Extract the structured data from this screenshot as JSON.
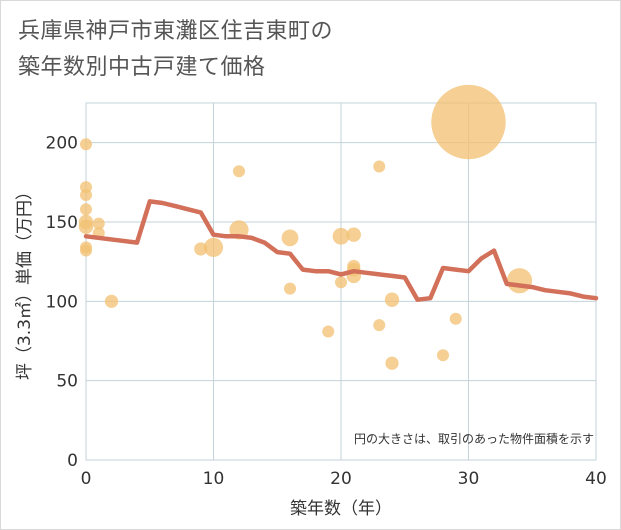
{
  "header": {
    "title_line1": "兵庫県神戸市東灘区住吉東町の",
    "title_line2": "築年数別中古戸建て価格"
  },
  "colors": {
    "grid": "#c5d3db",
    "bubble": "#f2c275",
    "line": "#d2705a",
    "text": "#333333"
  },
  "chart_data": {
    "type": "scatter",
    "xlabel": "築年数（年）",
    "ylabel": "坪（3.3㎡）単価（万円）",
    "note": "円の大きさは、取引のあった物件面積を示す",
    "xlim": [
      0,
      40
    ],
    "ylim": [
      0,
      225
    ],
    "xticks": [
      0,
      10,
      20,
      30,
      40
    ],
    "yticks": [
      0,
      50,
      100,
      150,
      200
    ],
    "xtick_labels": [
      "0",
      "10",
      "20",
      "30",
      "40"
    ],
    "ytick_labels": [
      "0",
      "50",
      "100",
      "150",
      "200"
    ],
    "bubbles": [
      {
        "x": 0,
        "y": 199,
        "size": 1
      },
      {
        "x": 0,
        "y": 172,
        "size": 1
      },
      {
        "x": 0,
        "y": 167,
        "size": 1
      },
      {
        "x": 0,
        "y": 158,
        "size": 1
      },
      {
        "x": 0,
        "y": 150,
        "size": 1.2
      },
      {
        "x": 0,
        "y": 147,
        "size": 1.2
      },
      {
        "x": 0,
        "y": 134,
        "size": 1
      },
      {
        "x": 0,
        "y": 132,
        "size": 1
      },
      {
        "x": 1,
        "y": 149,
        "size": 1
      },
      {
        "x": 1,
        "y": 143,
        "size": 1
      },
      {
        "x": 2,
        "y": 100,
        "size": 1.1
      },
      {
        "x": 9,
        "y": 133,
        "size": 1.1
      },
      {
        "x": 10,
        "y": 134,
        "size": 1.6
      },
      {
        "x": 12,
        "y": 182,
        "size": 1
      },
      {
        "x": 12,
        "y": 145,
        "size": 1.6
      },
      {
        "x": 16,
        "y": 140,
        "size": 1.4
      },
      {
        "x": 16,
        "y": 108,
        "size": 1
      },
      {
        "x": 19,
        "y": 81,
        "size": 1
      },
      {
        "x": 20,
        "y": 141,
        "size": 1.4
      },
      {
        "x": 20,
        "y": 112,
        "size": 1
      },
      {
        "x": 21,
        "y": 142,
        "size": 1.2
      },
      {
        "x": 21,
        "y": 122,
        "size": 1.1
      },
      {
        "x": 21,
        "y": 120,
        "size": 1.1
      },
      {
        "x": 21,
        "y": 116,
        "size": 1.2
      },
      {
        "x": 23,
        "y": 185,
        "size": 1
      },
      {
        "x": 23,
        "y": 85,
        "size": 1
      },
      {
        "x": 24,
        "y": 101,
        "size": 1.2
      },
      {
        "x": 24,
        "y": 61,
        "size": 1.1
      },
      {
        "x": 28,
        "y": 66,
        "size": 1
      },
      {
        "x": 29,
        "y": 89,
        "size": 1
      },
      {
        "x": 30,
        "y": 213,
        "size": 6.2
      },
      {
        "x": 34,
        "y": 113,
        "size": 2.1
      }
    ],
    "trend": {
      "x": [
        0,
        4,
        5,
        6,
        7,
        8,
        9,
        10,
        11,
        12,
        13,
        14,
        15,
        16,
        17,
        18,
        19,
        20,
        21,
        22,
        23,
        24,
        25,
        26,
        27,
        28,
        29,
        30,
        31,
        32,
        33,
        34,
        35,
        36,
        37,
        38,
        39,
        40
      ],
      "y": [
        141,
        137,
        163,
        162,
        160,
        158,
        156,
        142,
        141,
        141,
        140,
        137,
        131,
        130,
        120,
        119,
        119,
        117,
        119,
        118,
        117,
        116,
        115,
        101,
        102,
        121,
        120,
        119,
        127,
        132,
        111,
        110,
        109,
        107,
        106,
        105,
        103,
        102
      ]
    }
  }
}
